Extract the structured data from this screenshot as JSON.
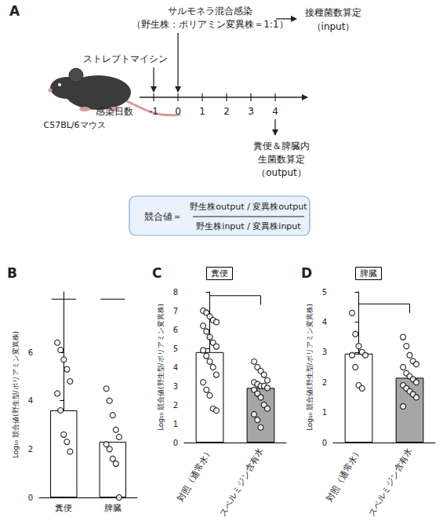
{
  "panel_a": {
    "panel": "A",
    "infection": "サルモネラ混合感染",
    "infection_ratio": "（野生株：ポリアミン変異株＝1:1）",
    "input_count": "接種菌数算定",
    "input_label": "（input）",
    "pretreatment": "ストレプトマイシン",
    "mouse": "C57BL/6マウス",
    "axis_label": "感染日数",
    "days": [
      -1,
      0,
      1,
      2,
      3,
      4
    ],
    "output_count": [
      "糞便＆脾臓内",
      "生菌数算定",
      "（output）"
    ],
    "formula": {
      "lhs": "競合値＝",
      "numerator": "野生株output / 変異株output",
      "denominator": "野生株input / 変異株input"
    }
  },
  "chart_data": [
    {
      "panel": "B",
      "type": "bar",
      "y_label": "Log₁₀ 競合値(野生型/ポリアミン変異株)",
      "categories": [
        "糞便",
        "脾臓"
      ],
      "values": [
        3.6,
        2.3
      ],
      "colors": [
        "#ffffff",
        "#ffffff"
      ],
      "points": [
        [
          6.4,
          6.1,
          5.7,
          5.3,
          4.8,
          4.3,
          3.6,
          2.6,
          2.3,
          1.9
        ],
        [
          4.5,
          4.0,
          3.4,
          2.8,
          2.5,
          2.2,
          2.0,
          1.6,
          1.4,
          0.0
        ]
      ],
      "marker": "circle",
      "ylim": [
        0,
        8.5
      ],
      "yticks": [
        0,
        2,
        4,
        6
      ],
      "grid": false,
      "significance_lines": [
        {
          "from": "糞便",
          "to": "糞便",
          "y": 8.2
        },
        {
          "from": "脾臓",
          "to": "脾臓",
          "y": 8.2
        }
      ]
    },
    {
      "panel": "C",
      "type": "bar",
      "title": "糞便",
      "y_label": "Log₁₀ 競合値(野生型/ポリアミン変異株)",
      "categories": [
        "対照（通常水）",
        "スペルミジン含有水"
      ],
      "values": [
        4.8,
        2.9
      ],
      "colors": [
        "#ffffff",
        "#a6a6a6"
      ],
      "points": [
        [
          7.0,
          6.9,
          6.7,
          6.5,
          6.4,
          6.2,
          5.9,
          5.6,
          5.3,
          5.1,
          4.9,
          4.6,
          4.3,
          4.0,
          3.6,
          3.2,
          2.8,
          2.5,
          1.8,
          1.7
        ],
        [
          4.3,
          4.0,
          3.8,
          3.6,
          3.3,
          3.2,
          3.1,
          3.0,
          3.0,
          2.9,
          2.8,
          2.6,
          2.4,
          2.0,
          1.8,
          1.5,
          1.2,
          0.8
        ]
      ],
      "marker": "circle",
      "ylim": [
        0,
        8
      ],
      "yticks": [
        0,
        1,
        2,
        3,
        4,
        5,
        6,
        7,
        8
      ],
      "grid": false,
      "significance_lines": [
        {
          "from": "対照（通常水）",
          "to": "スペルミジン含有水",
          "y": 7.8
        }
      ]
    },
    {
      "panel": "D",
      "type": "bar",
      "title": "脾臓",
      "y_label": "Log₁₀ 競合値(野生型/ポリアミン変異株)",
      "categories": [
        "対照（通常水）",
        "スペルミジン含有水"
      ],
      "values": [
        2.95,
        2.15
      ],
      "colors": [
        "#ffffff",
        "#a6a6a6"
      ],
      "points": [
        [
          4.3,
          3.6,
          3.2,
          3.0,
          2.9,
          2.9,
          2.5,
          1.9,
          1.8
        ],
        [
          3.5,
          3.2,
          2.9,
          2.7,
          2.6,
          2.5,
          2.3,
          2.2,
          2.1,
          2.0,
          1.9,
          1.8,
          1.7,
          1.6,
          1.5,
          1.2
        ]
      ],
      "marker": "circle",
      "ylim": [
        0,
        5
      ],
      "yticks": [
        0,
        1,
        2,
        3,
        4,
        5
      ],
      "grid": false,
      "significance_lines": [
        {
          "from": "対照（通常水）",
          "to": "スペルミジン含有水",
          "y": 4.6
        }
      ]
    }
  ]
}
